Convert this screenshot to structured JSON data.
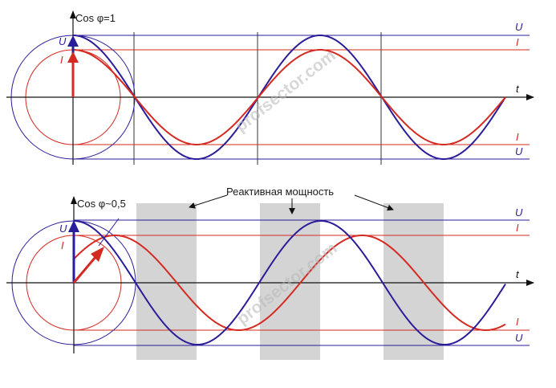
{
  "colors": {
    "voltage": "#2a1d9a",
    "current": "#d42a22",
    "axis": "#111111",
    "reactive_band": "#d4d4d4"
  },
  "watermark": "profsector.com",
  "top_panel": {
    "cos_label": "Cos φ=1",
    "axis_t": "t",
    "phasor_u": "U",
    "phasor_i": "I",
    "right_u_top": "U",
    "right_i_top": "I",
    "right_i_bottom": "I",
    "right_u_bottom": "U",
    "phase_shift_deg": 0
  },
  "bottom_panel": {
    "cos_label": "Cos φ~0,5",
    "reactive_label": "Реактивная мощность",
    "axis_t": "t",
    "phasor_u": "U",
    "phasor_i": "I",
    "right_u_top": "U",
    "right_i_top": "I",
    "right_i_bottom": "I",
    "right_u_bottom": "U",
    "phase_shift_deg": 60
  }
}
